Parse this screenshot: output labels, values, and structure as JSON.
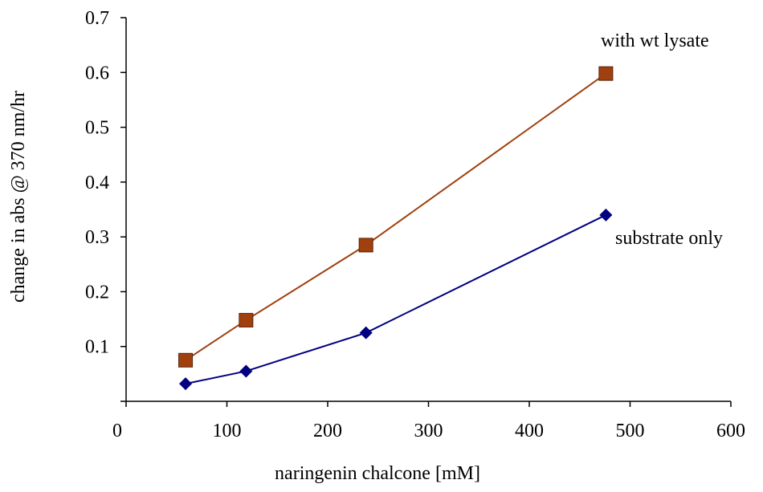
{
  "chart_data": {
    "type": "line",
    "title": "",
    "xlabel": "naringenin chalcone [mM]",
    "ylabel": "change in abs @ 370 nm/hr",
    "xlim": [
      0,
      600
    ],
    "ylim": [
      0,
      0.7
    ],
    "x_ticks": [
      "0",
      "100",
      "200",
      "300",
      "400",
      "500",
      "600"
    ],
    "y_ticks": [
      "0.1",
      "0.2",
      "0.3",
      "0.4",
      "0.5",
      "0.6",
      "0.7"
    ],
    "grid": false,
    "legend": "none",
    "series": [
      {
        "name": "with wt lysate",
        "color": "#A0400F",
        "marker": "square",
        "x": [
          59,
          119,
          238,
          476
        ],
        "y": [
          0.075,
          0.148,
          0.285,
          0.598
        ]
      },
      {
        "name": "substrate only",
        "color": "#000080",
        "marker": "diamond",
        "x": [
          59,
          119,
          238,
          476
        ],
        "y": [
          0.032,
          0.055,
          0.125,
          0.34
        ]
      }
    ]
  }
}
